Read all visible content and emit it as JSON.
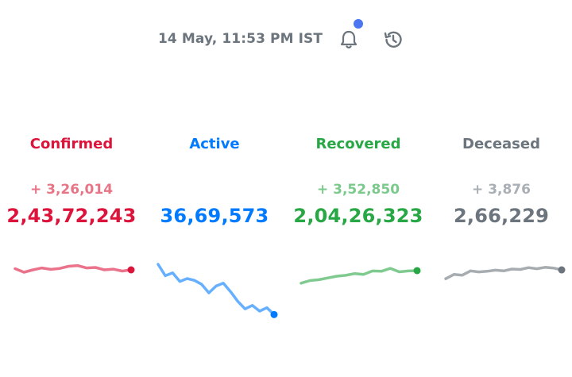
{
  "header": {
    "timestamp": "14 May, 11:53 PM IST",
    "icons": [
      "bell-icon",
      "history-icon"
    ],
    "notification_dot_color": "#4c75f2"
  },
  "levels": [
    {
      "name": "Confirmed",
      "delta": "+ 3,26,014",
      "total": "2,43,72,243",
      "color": "#dc143c",
      "delta_color": "#e87586",
      "trend": [
        0.45,
        0.6,
        0.5,
        0.42,
        0.48,
        0.44,
        0.35,
        0.32,
        0.42,
        0.4,
        0.5,
        0.47,
        0.55,
        0.5
      ]
    },
    {
      "name": "Active",
      "delta": "",
      "total": "36,69,573",
      "color": "#007bff",
      "delta_color": "#66b0ff",
      "trend": [
        0.0,
        0.2,
        0.15,
        0.3,
        0.25,
        0.28,
        0.35,
        0.5,
        0.38,
        0.33,
        0.48,
        0.65,
        0.78,
        0.72,
        0.82,
        0.76,
        0.88
      ]
    },
    {
      "name": "Recovered",
      "delta": "+ 3,52,850",
      "total": "2,04,26,323",
      "color": "#28a745",
      "delta_color": "#7cc98c",
      "trend": [
        0.9,
        0.75,
        0.7,
        0.6,
        0.5,
        0.45,
        0.35,
        0.4,
        0.2,
        0.22,
        0.05,
        0.25,
        0.2,
        0.18
      ]
    },
    {
      "name": "Deceased",
      "delta": "+ 3,876",
      "total": "2,66,229",
      "color": "#6c757d",
      "delta_color": "#a9afb5",
      "trend": [
        0.9,
        0.6,
        0.65,
        0.35,
        0.42,
        0.38,
        0.3,
        0.35,
        0.22,
        0.25,
        0.12,
        0.2,
        0.1,
        0.15,
        0.28
      ]
    }
  ]
}
